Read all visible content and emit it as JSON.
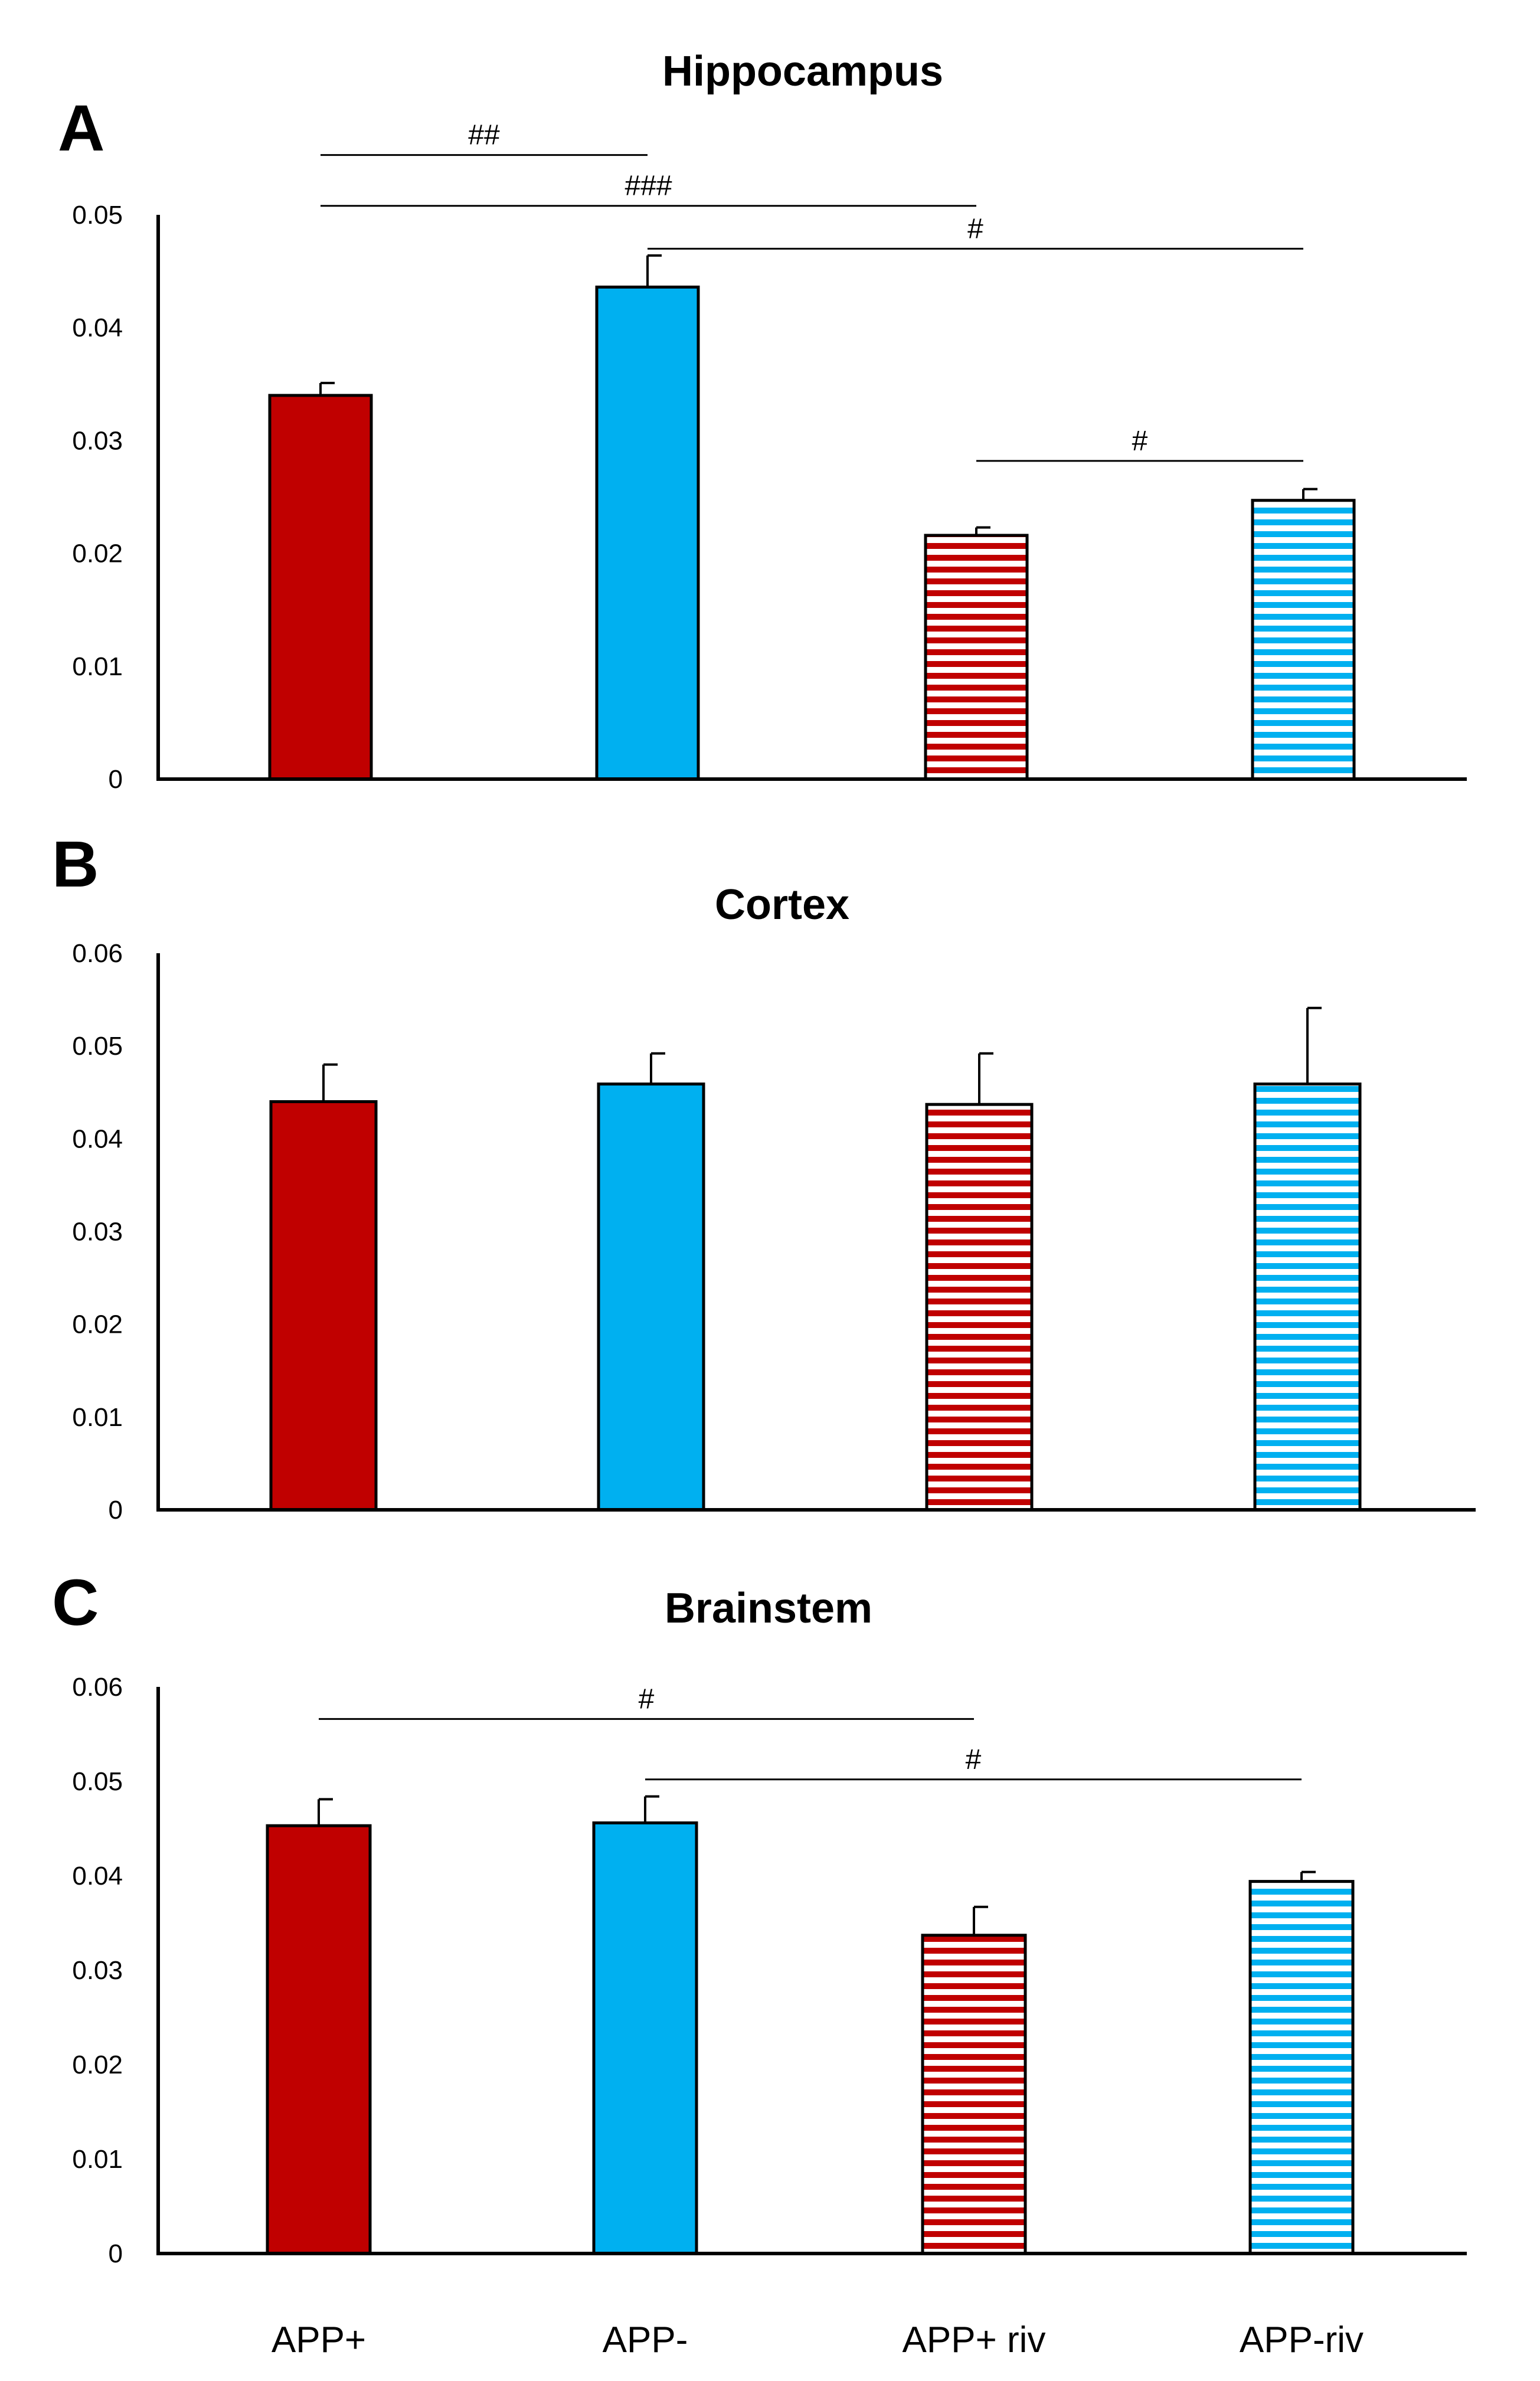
{
  "colors": {
    "app_plus": "#C00000",
    "app_minus": "#00B0F0",
    "axis": "#000000",
    "background": "#FFFFFF"
  },
  "legend_categories": [
    "APP+",
    "APP-",
    "APP+ riv",
    "APP-riv"
  ],
  "chart_data": [
    {
      "type": "bar",
      "panel": "A",
      "title": "Hippocampus",
      "xlabel": "",
      "ylabel": "",
      "ylim": [
        0,
        0.05
      ],
      "yticks": [
        "0",
        "0.01",
        "0.02",
        "0.03",
        "0.04",
        "0.05"
      ],
      "categories": [
        "APP+",
        "APP-",
        "APP+ riv",
        "APP-riv"
      ],
      "values": [
        0.034,
        0.0436,
        0.0216,
        0.0247
      ],
      "errors": [
        0.0011,
        0.0028,
        0.0007,
        0.001
      ],
      "patterns": [
        "solid",
        "solid",
        "striped",
        "striped"
      ],
      "colors": [
        "#C00000",
        "#00B0F0",
        "#C00000",
        "#00B0F0"
      ],
      "significance": [
        {
          "from": 0,
          "to": 1,
          "label": "##",
          "level": 0.0553
        },
        {
          "from": 0,
          "to": 2,
          "label": "###",
          "level": 0.0508
        },
        {
          "from": 1,
          "to": 3,
          "label": "#",
          "level": 0.047
        },
        {
          "from": 2,
          "to": 3,
          "label": "#",
          "level": 0.0282
        }
      ]
    },
    {
      "type": "bar",
      "panel": "B",
      "title": "Cortex",
      "xlabel": "",
      "ylabel": "",
      "ylim": [
        0,
        0.06
      ],
      "yticks": [
        "0",
        "0.01",
        "0.02",
        "0.03",
        "0.04",
        "0.05",
        "0.06"
      ],
      "categories": [
        "APP+",
        "APP-",
        "APP+ riv",
        "APP-riv"
      ],
      "values": [
        0.044,
        0.0459,
        0.0437,
        0.0459
      ],
      "errors": [
        0.004,
        0.0033,
        0.0055,
        0.0082
      ],
      "patterns": [
        "solid",
        "solid",
        "striped",
        "striped"
      ],
      "colors": [
        "#C00000",
        "#00B0F0",
        "#C00000",
        "#00B0F0"
      ],
      "significance": []
    },
    {
      "type": "bar",
      "panel": "C",
      "title": "Brainstem",
      "xlabel": "",
      "ylabel": "",
      "ylim": [
        0,
        0.06
      ],
      "yticks": [
        "0",
        "0.01",
        "0.02",
        "0.03",
        "0.04",
        "0.05",
        "0.06"
      ],
      "categories": [
        "APP+",
        "APP-",
        "APP+ riv",
        "APP-riv"
      ],
      "category_labels_visible": true,
      "values": [
        0.0453,
        0.0456,
        0.0337,
        0.0394
      ],
      "errors": [
        0.0028,
        0.0028,
        0.003,
        0.001
      ],
      "patterns": [
        "solid",
        "solid",
        "striped",
        "striped"
      ],
      "colors": [
        "#C00000",
        "#00B0F0",
        "#C00000",
        "#00B0F0"
      ],
      "significance": [
        {
          "from": 0,
          "to": 2,
          "label": "#",
          "level": 0.0566
        },
        {
          "from": 1,
          "to": 3,
          "label": "#",
          "level": 0.0502
        }
      ]
    }
  ]
}
